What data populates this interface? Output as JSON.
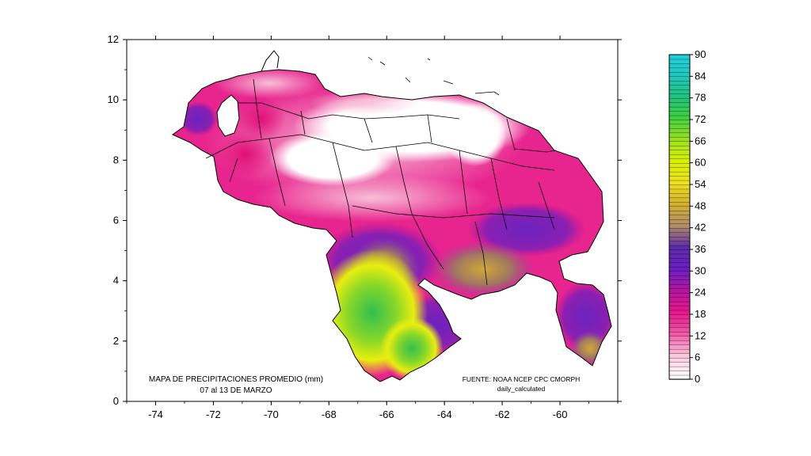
{
  "map": {
    "title_line1": "MAPA DE PRECIPITACIONES PROMEDIO (mm)",
    "title_line2": "07 al 13 DE MARZO",
    "source_line1": "FUENTE: NOAA NCEP CPC CMORPH",
    "source_line2": "daily_calculated"
  },
  "chart_data": {
    "type": "heatmap",
    "x_ticks": [
      -74,
      -72,
      -70,
      -68,
      -66,
      -64,
      -62,
      -60
    ],
    "y_ticks": [
      0,
      2,
      4,
      6,
      8,
      10,
      12
    ],
    "xlim": [
      -75,
      -58
    ],
    "ylim": [
      0,
      12
    ],
    "colorbar": {
      "labels": [
        0,
        6,
        12,
        18,
        24,
        30,
        36,
        42,
        48,
        54,
        60,
        66,
        72,
        78,
        84,
        90
      ],
      "range": [
        0,
        90
      ],
      "colors": [
        "#ffffff",
        "#f9c8dc",
        "#f05aa8",
        "#e8188c",
        "#b5159e",
        "#6a1fc4",
        "#5c2aa8",
        "#b08a6a",
        "#d4b030",
        "#f0e020",
        "#d8f000",
        "#9ae020",
        "#40d040",
        "#20c080",
        "#20c8c0",
        "#20d0e0"
      ]
    }
  }
}
